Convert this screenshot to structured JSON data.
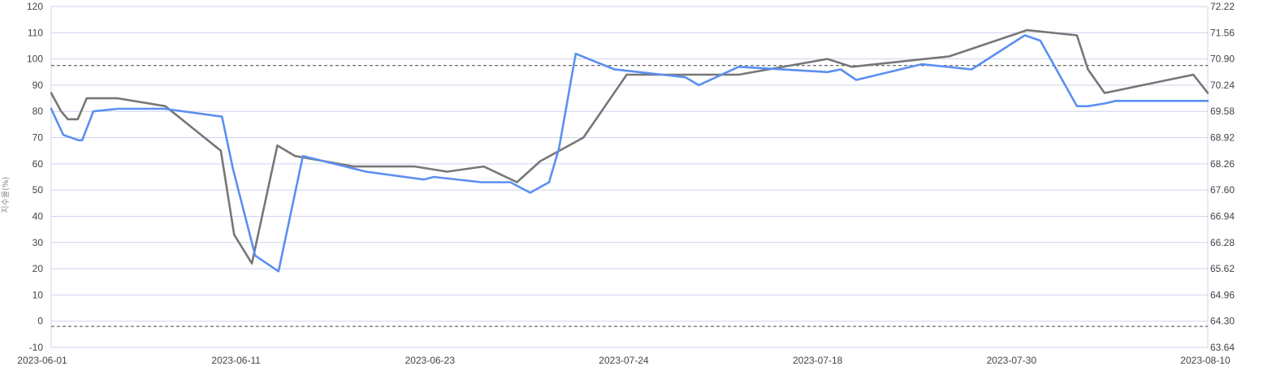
{
  "chart_data": {
    "type": "line",
    "ylabel": "지수율(%)",
    "ylim": [
      -10,
      120
    ],
    "yticks": [
      "-10",
      "0",
      "10",
      "20",
      "30",
      "40",
      "50",
      "60",
      "70",
      "80",
      "90",
      "100",
      "110",
      "120"
    ],
    "y2lim": [
      63.64,
      72.22
    ],
    "y2ticks": [
      "63.64",
      "64.30",
      "64.96",
      "65.62",
      "66.28",
      "66.94",
      "67.60",
      "68.26",
      "68.92",
      "69.58",
      "70.24",
      "70.90",
      "71.56",
      "72.22"
    ],
    "xticks": [
      "2023-06-01",
      "2023-06-11",
      "2023-06-23",
      "2023-07-24",
      "2023-07-18",
      "2023-07-30",
      "2023-08-10"
    ],
    "reference_lines": [
      97.5,
      -2
    ],
    "grid": true,
    "legend": "none",
    "series": [
      {
        "color": "#777777",
        "axis": "left",
        "x": [
          0,
          0.09,
          0.15,
          0.24,
          0.32,
          0.6,
          1.03,
          1.53,
          1.65,
          1.81,
          2.04,
          2.2,
          2.73,
          3.28,
          3.57,
          3.9,
          4.2,
          4.41,
          4.8,
          5.19,
          5.45,
          6.2,
          7.0,
          7.22,
          8.1,
          8.8,
          9.25,
          9.35,
          9.5,
          10.3,
          10.43
        ],
        "values": [
          87,
          80,
          77,
          77,
          85,
          85,
          82,
          65,
          33,
          22,
          67,
          63,
          59,
          59,
          57,
          59,
          53,
          61,
          70,
          94,
          94,
          94,
          100,
          97,
          101,
          111,
          109,
          96,
          87,
          94,
          87
        ]
      },
      {
        "color": "#5b8ff0",
        "axis": "left",
        "x": [
          0,
          0.11,
          0.25,
          0.28,
          0.38,
          0.6,
          1.02,
          1.54,
          1.64,
          1.84,
          2.05,
          2.27,
          2.84,
          3.36,
          3.45,
          3.88,
          4.14,
          4.32,
          4.49,
          4.58,
          4.73,
          5.08,
          5.51,
          5.72,
          5.84,
          6.2,
          7.0,
          7.12,
          7.26,
          7.85,
          8.3,
          8.78,
          8.92,
          9.25,
          9.35,
          9.5,
          9.6,
          10.43
        ],
        "values": [
          81,
          71,
          69,
          69,
          80,
          81,
          81,
          78,
          58,
          25,
          19,
          63,
          57,
          54,
          55,
          53,
          53,
          49,
          53,
          66,
          102,
          96,
          94,
          93,
          90,
          97,
          95,
          96,
          92,
          98,
          96,
          109,
          107,
          82,
          82,
          83,
          84,
          84
        ]
      }
    ]
  }
}
